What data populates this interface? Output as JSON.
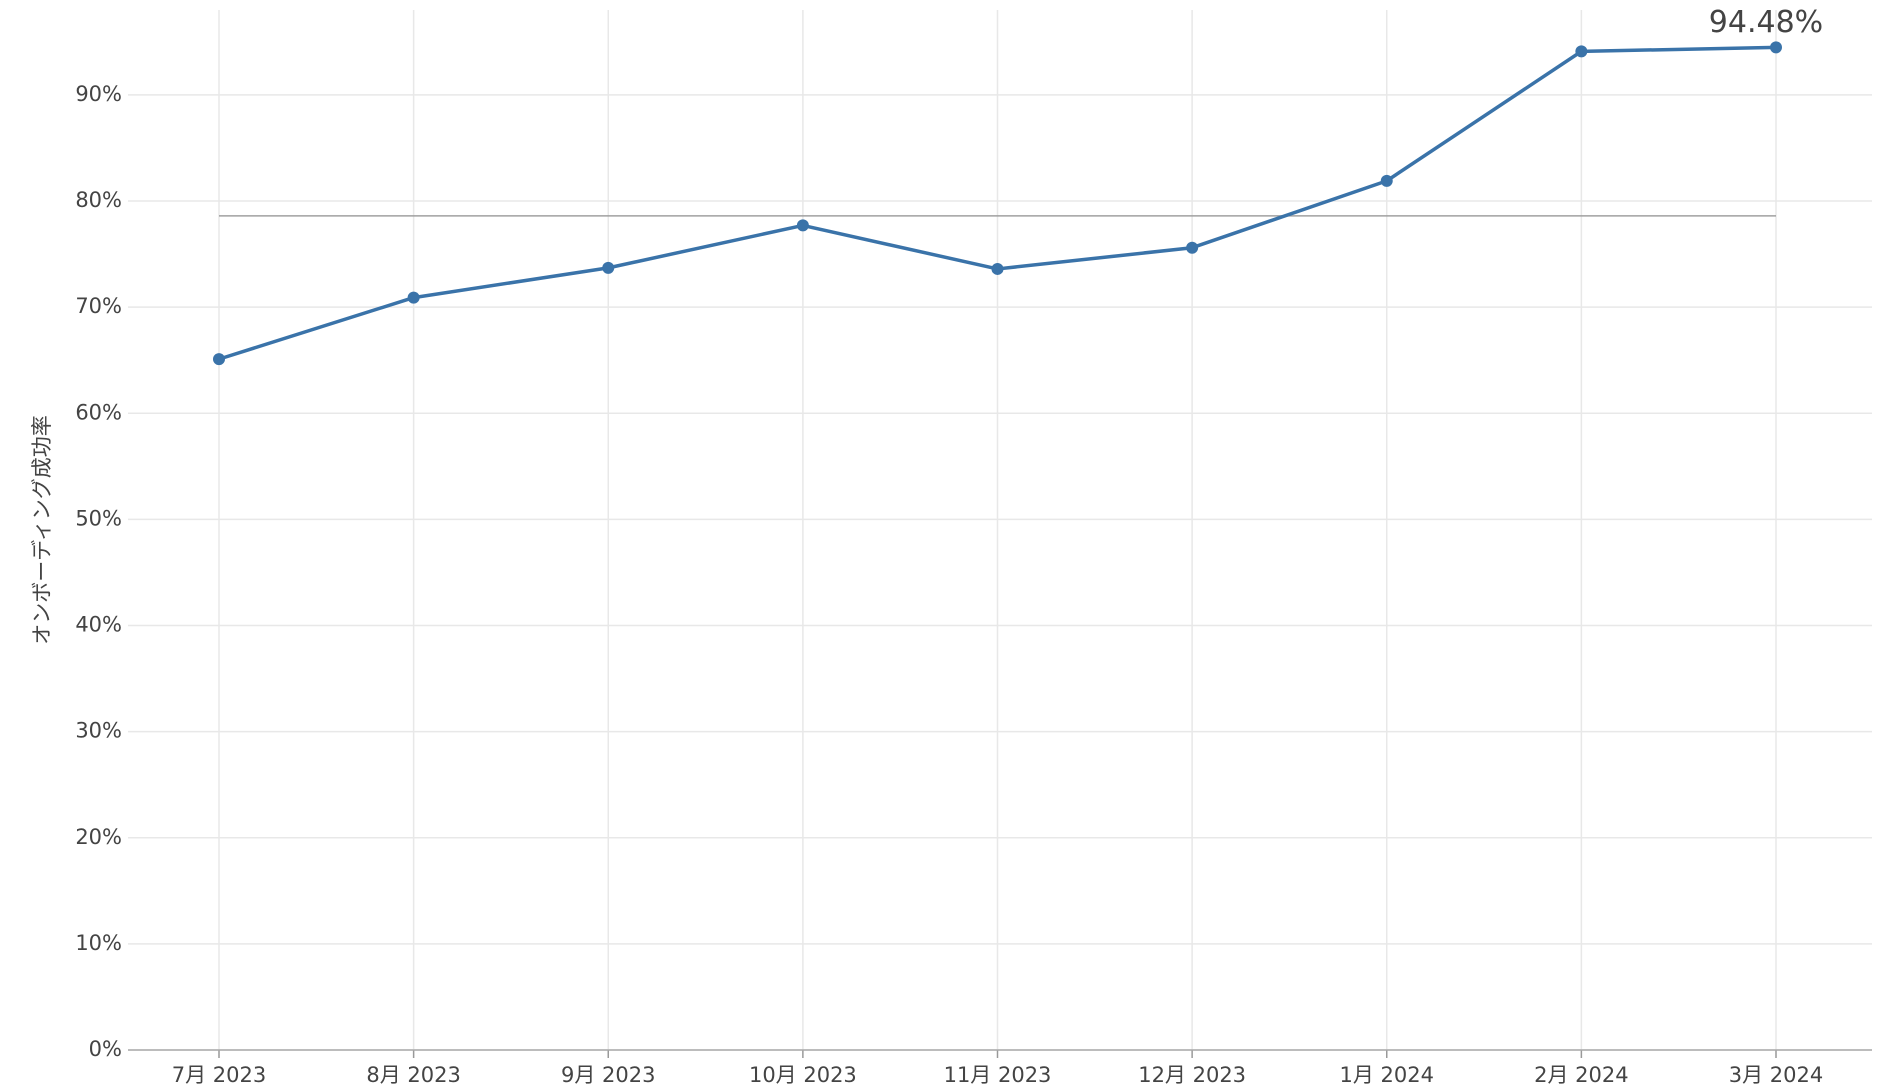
{
  "chart_data": {
    "type": "line",
    "y_label": "オンボーディング成功率",
    "categories": [
      "7月 2023",
      "8月 2023",
      "9月 2023",
      "10月 2023",
      "11月 2023",
      "12月 2023",
      "1月 2024",
      "2月 2024",
      "3月 2024"
    ],
    "series": [
      {
        "name": "オンボーディング成功率",
        "color": "#3a73a9",
        "values": [
          65.1,
          70.9,
          73.7,
          77.7,
          73.6,
          75.6,
          81.9,
          94.1,
          94.48
        ],
        "value_labels": [
          null,
          null,
          null,
          null,
          null,
          null,
          null,
          null,
          "94.48%"
        ]
      }
    ],
    "reference_line": {
      "value": 78.6,
      "color": "#a0a0a0"
    },
    "ylim": [
      0,
      98
    ],
    "yticks": [
      {
        "value": 0,
        "label": "0%"
      },
      {
        "value": 10,
        "label": "10%"
      },
      {
        "value": 20,
        "label": "20%"
      },
      {
        "value": 30,
        "label": "30%"
      },
      {
        "value": 40,
        "label": "40%"
      },
      {
        "value": 50,
        "label": "50%"
      },
      {
        "value": 60,
        "label": "60%"
      },
      {
        "value": 70,
        "label": "70%"
      },
      {
        "value": 80,
        "label": "80%"
      },
      {
        "value": 90,
        "label": "90%"
      }
    ],
    "grid": true
  }
}
